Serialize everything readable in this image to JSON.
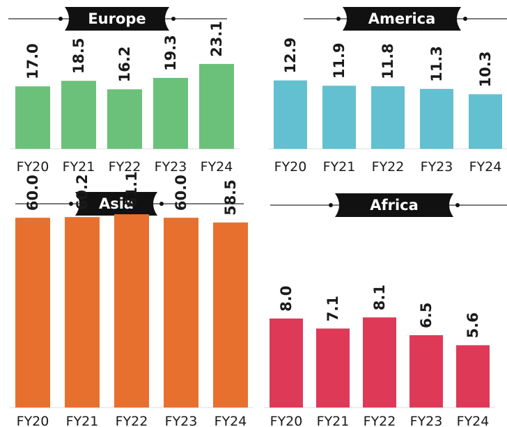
{
  "chart_data": [
    {
      "type": "bar",
      "title": "Europe",
      "categories": [
        "FY20",
        "FY21",
        "FY22",
        "FY23",
        "FY24"
      ],
      "values": [
        17.0,
        18.5,
        16.2,
        19.3,
        23.1
      ],
      "value_labels": [
        "17.0",
        "18.5",
        "16.2",
        "19.3",
        "23.1"
      ],
      "color": "#6cc17a",
      "ylim": [
        0,
        35
      ]
    },
    {
      "type": "bar",
      "title": "America",
      "categories": [
        "FY20",
        "FY21",
        "FY22",
        "FY23",
        "FY24"
      ],
      "values": [
        12.9,
        11.9,
        11.8,
        11.3,
        10.3
      ],
      "value_labels": [
        "12.9",
        "11.9",
        "11.8",
        "11.3",
        "10.3"
      ],
      "color": "#63c0d1",
      "ylim": [
        0,
        24
      ]
    },
    {
      "type": "bar",
      "title": "Asia",
      "categories": [
        "FY20",
        "FY21",
        "FY22",
        "FY23",
        "FY24"
      ],
      "values": [
        60.0,
        60.2,
        61.1,
        60.0,
        58.5
      ],
      "value_labels": [
        "60.0",
        "60.2",
        "61.1",
        "60.0",
        "58.5"
      ],
      "color": "#e8702f",
      "ylim": [
        0,
        62
      ]
    },
    {
      "type": "bar",
      "title": "Africa",
      "categories": [
        "FY20",
        "FY21",
        "FY22",
        "FY23",
        "FY24"
      ],
      "values": [
        8.0,
        7.1,
        8.1,
        6.5,
        5.6
      ],
      "value_labels": [
        "8.0",
        "7.1",
        "8.1",
        "6.5",
        "5.6"
      ],
      "color": "#df3958",
      "ylim": [
        0,
        20
      ]
    }
  ]
}
